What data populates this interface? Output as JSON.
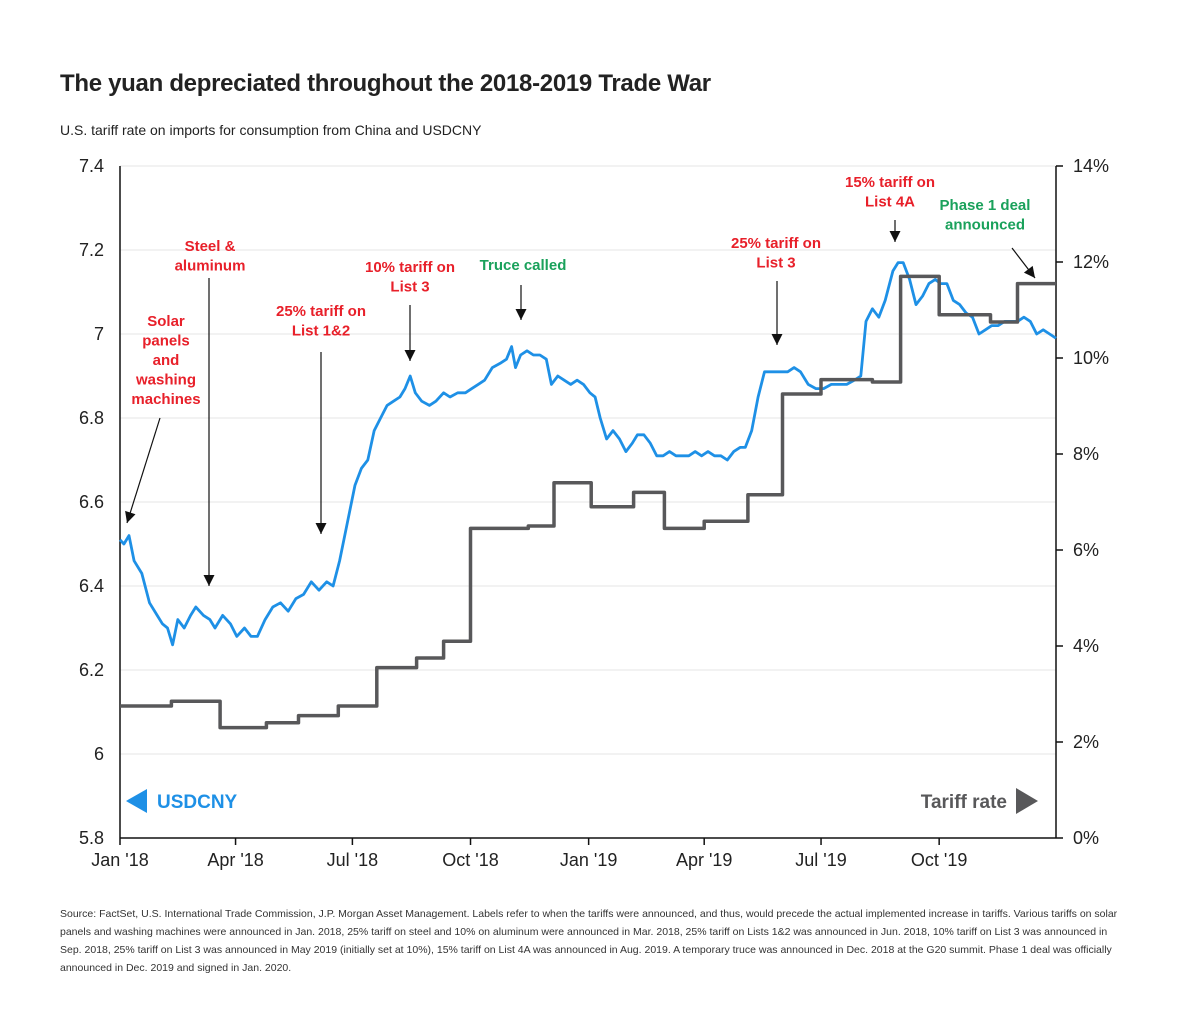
{
  "title": "The yuan depreciated throughout the 2018-2019 Trade War",
  "subtitle": "U.S. tariff rate on imports for consumption from China and USDCNY",
  "source_note": "Source: FactSet, U.S. International Trade Commission, J.P. Morgan Asset Management. Labels refer to when the tariffs were announced, and thus, would precede the actual implemented increase in tariffs. Various tariffs on solar panels and washing machines were announced in Jan. 2018, 25% tariff on steel and 10% on aluminum were announced in Mar. 2018, 25% tariff on Lists 1&2 was announced in Jun. 2018, 10% tariff on List 3 was announced in Sep. 2018, 25% tariff on List 3 was announced in May 2019 (initially set at 10%), 15% tariff on List 4A was announced in Aug. 2019. A temporary truce was announced in Dec. 2018 at the G20 summit. Phase 1 deal was officially announced in Dec. 2019 and signed in Jan. 2020.",
  "colors": {
    "usdcny": "#1e90e6",
    "tariff": "#58585a",
    "red_label": "#e8202a",
    "green_label": "#1aa15b",
    "grid": "#e6e6e6"
  },
  "chart_data": {
    "type": "line",
    "x_range": [
      "2018-01-01",
      "2019-12-31"
    ],
    "x_ticks": [
      {
        "date": "2018-01-01",
        "label": "Jan '18"
      },
      {
        "date": "2018-04-01",
        "label": "Apr '18"
      },
      {
        "date": "2018-07-01",
        "label": "Jul '18"
      },
      {
        "date": "2018-10-01",
        "label": "Oct '18"
      },
      {
        "date": "2019-01-01",
        "label": "Jan '19"
      },
      {
        "date": "2019-04-01",
        "label": "Apr '19"
      },
      {
        "date": "2019-07-01",
        "label": "Jul '19"
      },
      {
        "date": "2019-10-01",
        "label": "Oct '19"
      }
    ],
    "y_left": {
      "min": 5.8,
      "max": 7.4,
      "ticks": [
        "5.8",
        "6",
        "6.2",
        "6.4",
        "6.6",
        "6.8",
        "7",
        "7.2",
        "7.4"
      ]
    },
    "y_right": {
      "min": 0,
      "max": 14,
      "ticks": [
        "0%",
        "2%",
        "4%",
        "6%",
        "8%",
        "10%",
        "12%",
        "14%"
      ]
    },
    "grid": true,
    "legend": [
      {
        "name": "USDCNY",
        "axis": "left",
        "placement": "bottom-left"
      },
      {
        "name": "Tariff rate",
        "axis": "right",
        "placement": "bottom-right"
      }
    ],
    "series": [
      {
        "name": "USDCNY",
        "axis": "left",
        "points": [
          [
            "2018-01-01",
            6.51
          ],
          [
            "2018-01-04",
            6.5
          ],
          [
            "2018-01-08",
            6.52
          ],
          [
            "2018-01-12",
            6.46
          ],
          [
            "2018-01-18",
            6.43
          ],
          [
            "2018-01-24",
            6.36
          ],
          [
            "2018-01-30",
            6.33
          ],
          [
            "2018-02-03",
            6.31
          ],
          [
            "2018-02-07",
            6.3
          ],
          [
            "2018-02-11",
            6.26
          ],
          [
            "2018-02-15",
            6.32
          ],
          [
            "2018-02-20",
            6.3
          ],
          [
            "2018-02-25",
            6.33
          ],
          [
            "2018-03-01",
            6.35
          ],
          [
            "2018-03-07",
            6.33
          ],
          [
            "2018-03-12",
            6.32
          ],
          [
            "2018-03-16",
            6.3
          ],
          [
            "2018-03-22",
            6.33
          ],
          [
            "2018-03-28",
            6.31
          ],
          [
            "2018-04-02",
            6.28
          ],
          [
            "2018-04-08",
            6.3
          ],
          [
            "2018-04-13",
            6.28
          ],
          [
            "2018-04-18",
            6.28
          ],
          [
            "2018-04-24",
            6.32
          ],
          [
            "2018-04-30",
            6.35
          ],
          [
            "2018-05-06",
            6.36
          ],
          [
            "2018-05-12",
            6.34
          ],
          [
            "2018-05-18",
            6.37
          ],
          [
            "2018-05-24",
            6.38
          ],
          [
            "2018-05-30",
            6.41
          ],
          [
            "2018-06-05",
            6.39
          ],
          [
            "2018-06-11",
            6.41
          ],
          [
            "2018-06-16",
            6.4
          ],
          [
            "2018-06-21",
            6.46
          ],
          [
            "2018-06-27",
            6.55
          ],
          [
            "2018-07-03",
            6.64
          ],
          [
            "2018-07-08",
            6.68
          ],
          [
            "2018-07-13",
            6.7
          ],
          [
            "2018-07-18",
            6.77
          ],
          [
            "2018-07-23",
            6.8
          ],
          [
            "2018-07-28",
            6.83
          ],
          [
            "2018-08-02",
            6.84
          ],
          [
            "2018-08-07",
            6.85
          ],
          [
            "2018-08-11",
            6.87
          ],
          [
            "2018-08-15",
            6.9
          ],
          [
            "2018-08-19",
            6.86
          ],
          [
            "2018-08-24",
            6.84
          ],
          [
            "2018-08-30",
            6.83
          ],
          [
            "2018-09-04",
            6.84
          ],
          [
            "2018-09-10",
            6.86
          ],
          [
            "2018-09-15",
            6.85
          ],
          [
            "2018-09-21",
            6.86
          ],
          [
            "2018-09-27",
            6.86
          ],
          [
            "2018-10-02",
            6.87
          ],
          [
            "2018-10-07",
            6.88
          ],
          [
            "2018-10-12",
            6.89
          ],
          [
            "2018-10-18",
            6.92
          ],
          [
            "2018-10-24",
            6.93
          ],
          [
            "2018-10-29",
            6.94
          ],
          [
            "2018-11-02",
            6.97
          ],
          [
            "2018-11-05",
            6.92
          ],
          [
            "2018-11-09",
            6.95
          ],
          [
            "2018-11-14",
            6.96
          ],
          [
            "2018-11-19",
            6.95
          ],
          [
            "2018-11-24",
            6.95
          ],
          [
            "2018-11-29",
            6.94
          ],
          [
            "2018-12-03",
            6.88
          ],
          [
            "2018-12-08",
            6.9
          ],
          [
            "2018-12-13",
            6.89
          ],
          [
            "2018-12-18",
            6.88
          ],
          [
            "2018-12-23",
            6.89
          ],
          [
            "2018-12-28",
            6.88
          ],
          [
            "2019-01-02",
            6.86
          ],
          [
            "2019-01-06",
            6.85
          ],
          [
            "2019-01-10",
            6.8
          ],
          [
            "2019-01-15",
            6.75
          ],
          [
            "2019-01-20",
            6.77
          ],
          [
            "2019-01-25",
            6.75
          ],
          [
            "2019-01-30",
            6.72
          ],
          [
            "2019-02-04",
            6.74
          ],
          [
            "2019-02-08",
            6.76
          ],
          [
            "2019-02-13",
            6.76
          ],
          [
            "2019-02-18",
            6.74
          ],
          [
            "2019-02-23",
            6.71
          ],
          [
            "2019-02-28",
            6.71
          ],
          [
            "2019-03-05",
            6.72
          ],
          [
            "2019-03-10",
            6.71
          ],
          [
            "2019-03-15",
            6.71
          ],
          [
            "2019-03-20",
            6.71
          ],
          [
            "2019-03-25",
            6.72
          ],
          [
            "2019-03-30",
            6.71
          ],
          [
            "2019-04-04",
            6.72
          ],
          [
            "2019-04-09",
            6.71
          ],
          [
            "2019-04-14",
            6.71
          ],
          [
            "2019-04-19",
            6.7
          ],
          [
            "2019-04-24",
            6.72
          ],
          [
            "2019-04-29",
            6.73
          ],
          [
            "2019-05-03",
            6.73
          ],
          [
            "2019-05-08",
            6.77
          ],
          [
            "2019-05-13",
            6.85
          ],
          [
            "2019-05-18",
            6.91
          ],
          [
            "2019-05-24",
            6.91
          ],
          [
            "2019-05-30",
            6.91
          ],
          [
            "2019-06-05",
            6.91
          ],
          [
            "2019-06-10",
            6.92
          ],
          [
            "2019-06-15",
            6.91
          ],
          [
            "2019-06-21",
            6.88
          ],
          [
            "2019-06-27",
            6.87
          ],
          [
            "2019-07-03",
            6.87
          ],
          [
            "2019-07-09",
            6.88
          ],
          [
            "2019-07-15",
            6.88
          ],
          [
            "2019-07-21",
            6.88
          ],
          [
            "2019-07-27",
            6.89
          ],
          [
            "2019-08-01",
            6.9
          ],
          [
            "2019-08-05",
            7.03
          ],
          [
            "2019-08-10",
            7.06
          ],
          [
            "2019-08-15",
            7.04
          ],
          [
            "2019-08-20",
            7.08
          ],
          [
            "2019-08-26",
            7.15
          ],
          [
            "2019-08-30",
            7.17
          ],
          [
            "2019-09-03",
            7.17
          ],
          [
            "2019-09-08",
            7.13
          ],
          [
            "2019-09-13",
            7.07
          ],
          [
            "2019-09-18",
            7.09
          ],
          [
            "2019-09-23",
            7.12
          ],
          [
            "2019-09-28",
            7.13
          ],
          [
            "2019-10-02",
            7.12
          ],
          [
            "2019-10-07",
            7.12
          ],
          [
            "2019-10-12",
            7.08
          ],
          [
            "2019-10-17",
            7.07
          ],
          [
            "2019-10-22",
            7.05
          ],
          [
            "2019-10-27",
            7.04
          ],
          [
            "2019-11-01",
            7.0
          ],
          [
            "2019-11-06",
            7.01
          ],
          [
            "2019-11-11",
            7.02
          ],
          [
            "2019-11-16",
            7.02
          ],
          [
            "2019-11-21",
            7.03
          ],
          [
            "2019-11-26",
            7.03
          ],
          [
            "2019-12-01",
            7.03
          ],
          [
            "2019-12-06",
            7.04
          ],
          [
            "2019-12-11",
            7.03
          ],
          [
            "2019-12-16",
            7.0
          ],
          [
            "2019-12-21",
            7.01
          ],
          [
            "2019-12-26",
            7.0
          ],
          [
            "2019-12-31",
            6.99
          ]
        ]
      },
      {
        "name": "Tariff rate",
        "axis": "right",
        "step": true,
        "points": [
          [
            "2018-01-01",
            2.75
          ],
          [
            "2018-02-10",
            2.85
          ],
          [
            "2018-03-20",
            2.3
          ],
          [
            "2018-04-25",
            2.4
          ],
          [
            "2018-05-20",
            2.55
          ],
          [
            "2018-06-20",
            2.75
          ],
          [
            "2018-07-20",
            3.55
          ],
          [
            "2018-08-20",
            3.75
          ],
          [
            "2018-09-10",
            4.1
          ],
          [
            "2018-10-01",
            6.45
          ],
          [
            "2018-11-15",
            6.5
          ],
          [
            "2018-12-05",
            7.4
          ],
          [
            "2019-01-03",
            6.9
          ],
          [
            "2019-02-05",
            7.2
          ],
          [
            "2019-03-01",
            6.45
          ],
          [
            "2019-04-01",
            6.6
          ],
          [
            "2019-05-05",
            7.15
          ],
          [
            "2019-06-01",
            9.25
          ],
          [
            "2019-07-01",
            9.55
          ],
          [
            "2019-08-10",
            9.5
          ],
          [
            "2019-09-01",
            11.7
          ],
          [
            "2019-10-01",
            10.9
          ],
          [
            "2019-11-10",
            10.75
          ],
          [
            "2019-12-01",
            11.55
          ],
          [
            "2019-12-31",
            11.55
          ]
        ]
      }
    ],
    "annotations": [
      {
        "lines": [
          "Solar",
          "panels",
          "and",
          "washing",
          "machines"
        ],
        "color": "red"
      },
      {
        "lines": [
          "Steel &",
          "aluminum"
        ],
        "color": "red"
      },
      {
        "lines": [
          "25% tariff on",
          "List 1&2"
        ],
        "color": "red"
      },
      {
        "lines": [
          "10% tariff on",
          "List 3"
        ],
        "color": "red"
      },
      {
        "lines": [
          "Truce called"
        ],
        "color": "green"
      },
      {
        "lines": [
          "25% tariff on",
          "List 3"
        ],
        "color": "red"
      },
      {
        "lines": [
          "15% tariff on",
          "List 4A"
        ],
        "color": "red"
      },
      {
        "lines": [
          "Phase 1 deal",
          "announced"
        ],
        "color": "green"
      }
    ]
  }
}
